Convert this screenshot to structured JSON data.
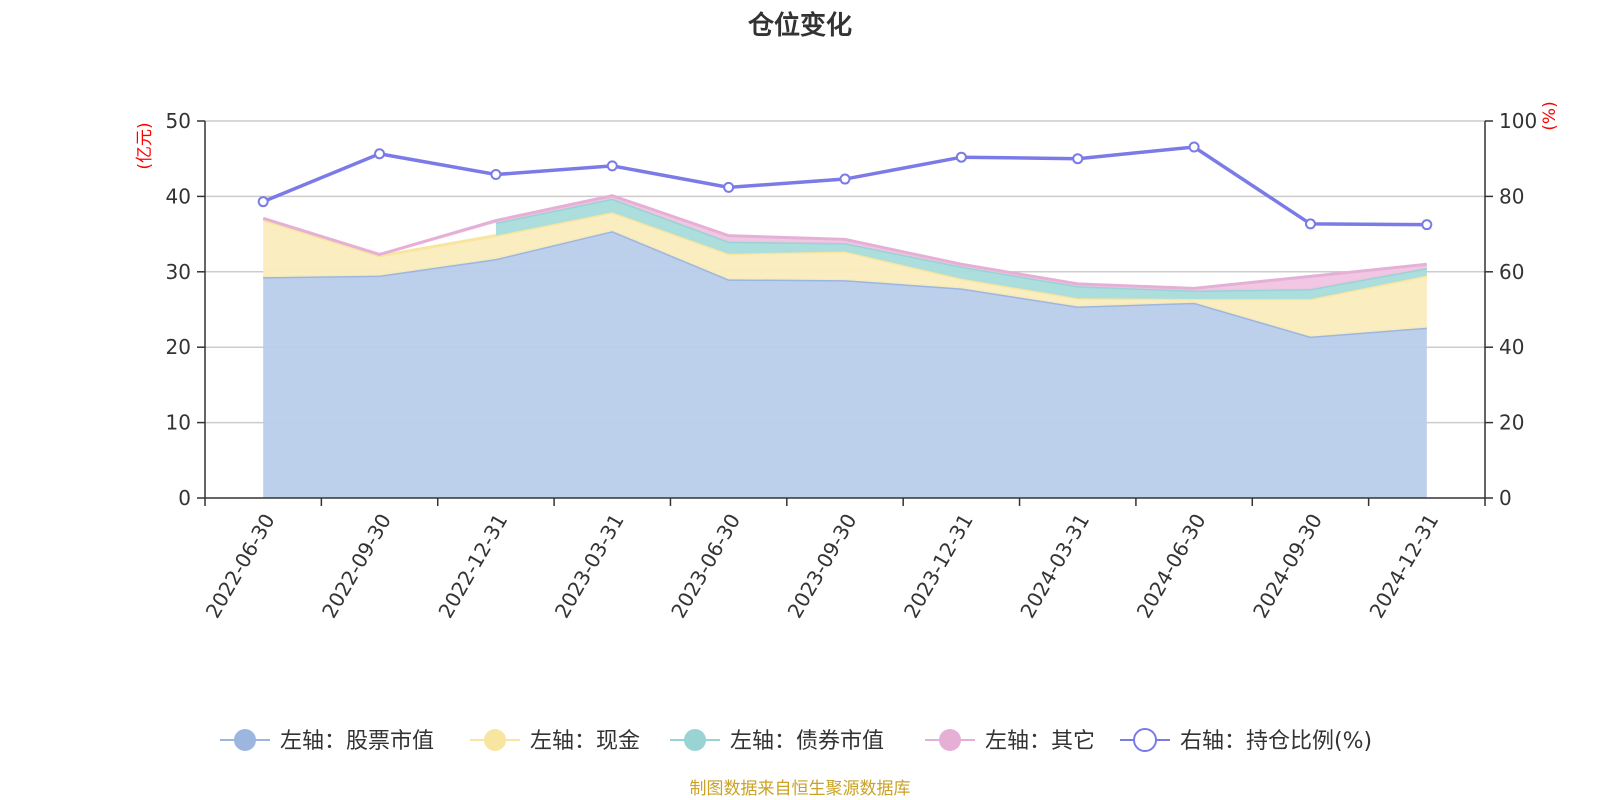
{
  "chart_data": {
    "type": "area",
    "title": "仓位变化",
    "categories": [
      "2022-06-30",
      "2022-09-30",
      "2022-12-31",
      "2023-03-31",
      "2023-06-30",
      "2023-09-30",
      "2023-12-31",
      "2024-03-31",
      "2024-06-30",
      "2024-09-30",
      "2024-12-31"
    ],
    "left_axis": {
      "name": "(亿元)",
      "ylim": [
        0,
        50
      ],
      "ticks": [
        "0",
        "10",
        "20",
        "30",
        "40",
        "50"
      ]
    },
    "right_axis": {
      "name": "(%)",
      "ylim": [
        0,
        100
      ],
      "ticks": [
        "0",
        "20",
        "40",
        "60",
        "80",
        "100"
      ]
    },
    "series": [
      {
        "name": "左轴：股票市值",
        "axis": "left",
        "stacked": true,
        "color": "#9db6e0",
        "fill": "#b9cdea",
        "values": [
          29.3,
          29.5,
          31.7,
          35.4,
          29.0,
          28.9,
          27.8,
          25.4,
          25.9,
          21.4,
          22.6
        ]
      },
      {
        "name": "左轴：现金",
        "axis": "left",
        "stacked": true,
        "color": "#f7e5a0",
        "fill": "#faedbd",
        "values": [
          7.6,
          2.6,
          3.1,
          2.5,
          3.4,
          3.8,
          1.3,
          1.1,
          0.5,
          5.0,
          6.9
        ]
      },
      {
        "name": "左轴：债券市值",
        "axis": "left",
        "stacked": true,
        "color": "#99d3d3",
        "fill": "#a9dcdc",
        "values": [
          0,
          0,
          1.7,
          1.8,
          1.6,
          1.1,
          1.6,
          1.6,
          1.1,
          1.3,
          1.0
        ]
      },
      {
        "name": "左轴：其它",
        "axis": "left",
        "stacked": true,
        "color": "#e6b0d6",
        "fill": "#f0c4e2",
        "values": [
          0.2,
          0.2,
          0.3,
          0.4,
          0.8,
          0.5,
          0.3,
          0.3,
          0.3,
          1.7,
          0.5
        ]
      },
      {
        "name": "右轴：持仓比例(%)",
        "axis": "right",
        "stacked": false,
        "color": "#7b7be8",
        "values": [
          78.6,
          91.3,
          85.8,
          88.1,
          82.4,
          84.6,
          90.4,
          90.0,
          93.1,
          72.7,
          72.5
        ]
      }
    ],
    "legend_position": "bottom",
    "source_note": "制图数据来自恒生聚源数据库"
  }
}
